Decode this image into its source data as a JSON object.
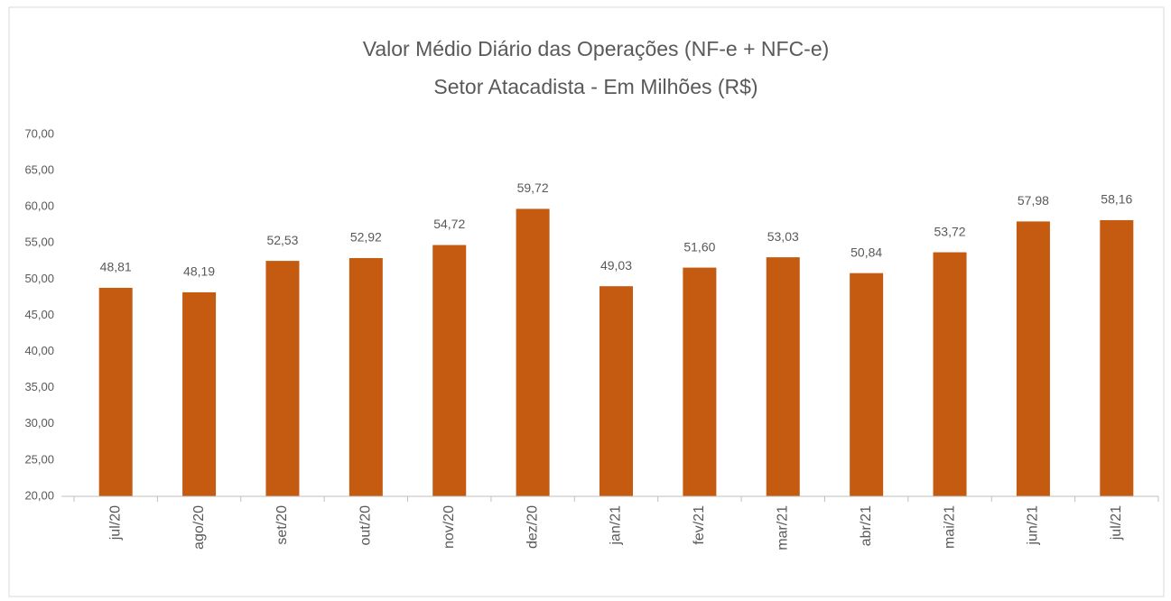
{
  "chart_data": {
    "type": "bar",
    "title": "Valor Médio Diário das Operações (NF-e + NFC-e)",
    "subtitle": "Setor Atacadista - Em Milhões (R$)",
    "categories": [
      "jul/20",
      "ago/20",
      "set/20",
      "out/20",
      "nov/20",
      "dez/20",
      "jan/21",
      "fev/21",
      "mar/21",
      "abr/21",
      "mai/21",
      "jun/21",
      "jul/21"
    ],
    "values": [
      48.81,
      48.19,
      52.53,
      52.92,
      54.72,
      59.72,
      49.03,
      51.6,
      53.03,
      50.84,
      53.72,
      57.98,
      58.16
    ],
    "value_labels": [
      "48,81",
      "48,19",
      "52,53",
      "52,92",
      "54,72",
      "59,72",
      "49,03",
      "51,60",
      "53,03",
      "50,84",
      "53,72",
      "57,98",
      "58,16"
    ],
    "color": "#c55a11",
    "ylim": [
      20,
      70
    ],
    "yticks": [
      {
        "value": 20,
        "label": "20,00"
      },
      {
        "value": 25,
        "label": "25,00"
      },
      {
        "value": 30,
        "label": "30,00"
      },
      {
        "value": 35,
        "label": "35,00"
      },
      {
        "value": 40,
        "label": "40,00"
      },
      {
        "value": 45,
        "label": "45,00"
      },
      {
        "value": 50,
        "label": "50,00"
      },
      {
        "value": 55,
        "label": "55,00"
      },
      {
        "value": 60,
        "label": "60,00"
      },
      {
        "value": 65,
        "label": "65,00"
      },
      {
        "value": 70,
        "label": "70,00"
      }
    ],
    "grid": false
  }
}
